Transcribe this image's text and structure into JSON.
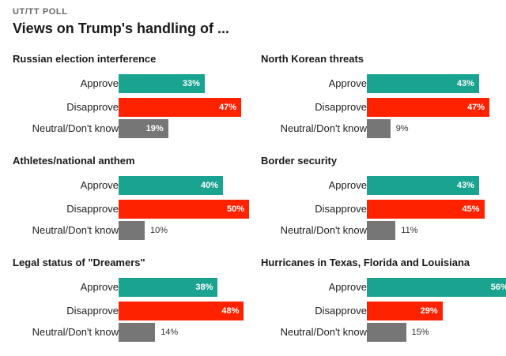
{
  "header": {
    "kicker": "UT/TT POLL",
    "title": "Views on Trump's handling of ..."
  },
  "colors": {
    "Approve": "#1aa391",
    "Disapprove": "#ff2200",
    "Neutral/Don't know": "#767676"
  },
  "chart_data": [
    {
      "type": "bar",
      "title": "Russian election interference",
      "categories": [
        "Approve",
        "Disapprove",
        "Neutral/Don't know"
      ],
      "values": [
        33,
        47,
        19
      ],
      "labels": [
        "33%",
        "47%",
        "19%"
      ]
    },
    {
      "type": "bar",
      "title": "North Korean threats",
      "categories": [
        "Approve",
        "Disapprove",
        "Neutral/Don't know"
      ],
      "values": [
        43,
        47,
        9
      ],
      "labels": [
        "43%",
        "47%",
        "9%"
      ]
    },
    {
      "type": "bar",
      "title": "Athletes/national anthem",
      "categories": [
        "Approve",
        "Disapprove",
        "Neutral/Don't know"
      ],
      "values": [
        40,
        50,
        10
      ],
      "labels": [
        "40%",
        "50%",
        "10%"
      ]
    },
    {
      "type": "bar",
      "title": "Border security",
      "categories": [
        "Approve",
        "Disapprove",
        "Neutral/Don't know"
      ],
      "values": [
        43,
        45,
        11
      ],
      "labels": [
        "43%",
        "45%",
        "11%"
      ]
    },
    {
      "type": "bar",
      "title": "Legal status of \"Dreamers\"",
      "categories": [
        "Approve",
        "Disapprove",
        "Neutral/Don't know"
      ],
      "values": [
        38,
        48,
        14
      ],
      "labels": [
        "38%",
        "48%",
        "14%"
      ]
    },
    {
      "type": "bar",
      "title": "Hurricanes in Texas, Florida and Louisiana",
      "categories": [
        "Approve",
        "Disapprove",
        "Neutral/Don't know"
      ],
      "values": [
        56,
        29,
        15
      ],
      "labels": [
        "56%",
        "29%",
        "15%"
      ]
    }
  ]
}
